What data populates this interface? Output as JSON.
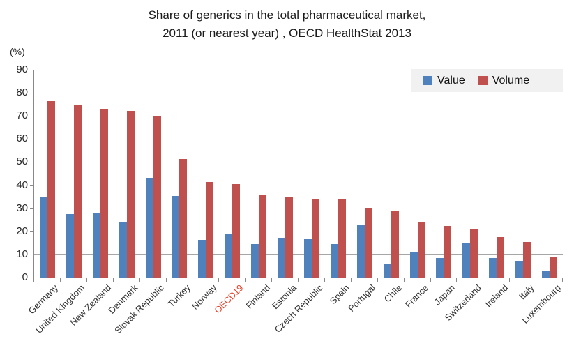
{
  "title": {
    "line1": "Share of generics in the total pharmaceutical market,",
    "line2": "2011 (or nearest year) , OECD HealthStat 2013"
  },
  "y_axis": {
    "unit_label": "(%)",
    "ticks": [
      0,
      10,
      20,
      30,
      40,
      50,
      60,
      70,
      80,
      90
    ]
  },
  "chart_data": {
    "type": "bar",
    "title": "Share of generics in the total pharmaceutical market, 2011 (or nearest year) , OECD HealthStat 2013",
    "categories": [
      "Germany",
      "United Kingdom",
      "New Zealand",
      "Denmark",
      "Slovak Republic",
      "Turkey",
      "Norway",
      "OECD19",
      "Finland",
      "Estonia",
      "Czech Republic",
      "Spain",
      "Portugal",
      "Chile",
      "France",
      "Japan",
      "Switzerland",
      "Ireland",
      "Italy",
      "Luxembourg"
    ],
    "series": [
      {
        "name": "Value",
        "color": "#4f81bd",
        "values": [
          35,
          27.4,
          27.7,
          24.1,
          43.2,
          35.3,
          16.2,
          18.7,
          14.6,
          17.3,
          16.6,
          14.4,
          22.7,
          5.7,
          11.2,
          8.4,
          15.2,
          8.4,
          7.4,
          3
        ]
      },
      {
        "name": "Volume",
        "color": "#c0504d",
        "values": [
          76.3,
          75,
          72.7,
          72.2,
          69.9,
          51.3,
          41.4,
          40.4,
          35.7,
          35,
          34.2,
          34,
          30,
          29,
          24.3,
          22.5,
          21,
          17.5,
          15.3,
          8.9
        ]
      }
    ],
    "ylabel": "(%)",
    "ylim": [
      0,
      90
    ],
    "ytick_step": 10,
    "grid": true,
    "legend_position": "top-right",
    "default_label_color": "#333333",
    "category_label_colors": {
      "OECD19": "#e8432c"
    }
  },
  "colors": {
    "value_series": "#4f81bd",
    "volume_series": "#c0504d",
    "gridline": "#a6a6a6",
    "axis": "#898989",
    "legend_background": "#f1f1f1",
    "highlight_label": "#e8432c"
  }
}
